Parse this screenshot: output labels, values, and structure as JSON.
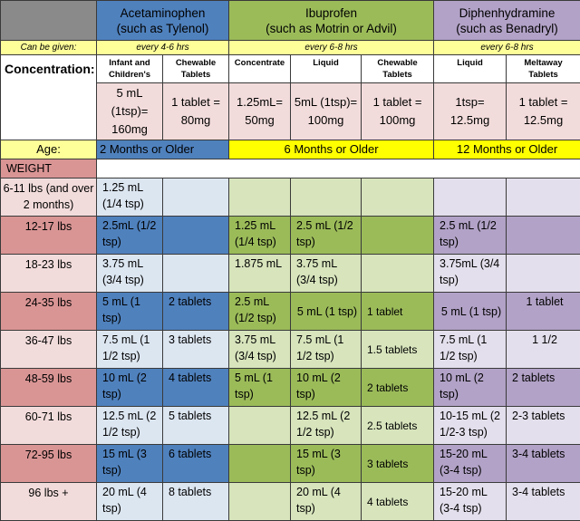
{
  "headers": {
    "acetaminophen": {
      "name": "Acetaminophen",
      "brand": "(such as Tylenol)"
    },
    "ibuprofen": {
      "name": "Ibuprofen",
      "brand": "(such as Motrin or Advil)"
    },
    "diphenhydramine": {
      "name": "Diphenhydramine",
      "brand": "(such as Benadryl)"
    }
  },
  "can_be_given": {
    "label": "Can be given:",
    "acetaminophen": "every 4-6 hrs",
    "ibuprofen": "every 6-8 hrs",
    "diphenhydramine": "every 6-8 hrs"
  },
  "concentration": {
    "label": "Concentration:",
    "subheaders": [
      "Infant and Children's",
      "Chewable Tablets",
      "Concentrate",
      "Liquid",
      "Chewable Tablets",
      "Liquid",
      "Meltaway Tablets"
    ],
    "values": [
      "5 mL (1tsp)= 160mg",
      "1 tablet = 80mg",
      "1.25mL= 50mg",
      "5mL (1tsp)= 100mg",
      "1 tablet = 100mg",
      "1tsp= 12.5mg",
      "1 tablet = 12.5mg"
    ]
  },
  "age": {
    "label": "Age:",
    "acetaminophen": "2 Months or Older",
    "ibuprofen": "6 Months or Older",
    "diphenhydramine": "12  Months or Older"
  },
  "weight_header": "WEIGHT",
  "rows": [
    {
      "weight": "6-11 lbs (and over 2 months)",
      "cells": [
        "1.25 mL (1/4 tsp)",
        "",
        "",
        "",
        "",
        "",
        ""
      ]
    },
    {
      "weight": "12-17 lbs",
      "cells": [
        "2.5mL (1/2 tsp)",
        "",
        "1.25 mL (1/4 tsp)",
        "2.5 mL (1/2 tsp)",
        "",
        "2.5 mL (1/2 tsp)",
        ""
      ]
    },
    {
      "weight": "18-23 lbs",
      "cells": [
        "3.75 mL (3/4 tsp)",
        "",
        "1.875 mL",
        "3.75 mL (3/4 tsp)",
        "",
        "3.75mL (3/4 tsp)",
        ""
      ]
    },
    {
      "weight": "24-35 lbs",
      "cells": [
        "5 mL (1 tsp)",
        "2 tablets",
        "2.5 mL (1/2 tsp)",
        "5 mL (1 tsp)",
        "1 tablet",
        "5 mL (1 tsp)",
        "1 tablet"
      ]
    },
    {
      "weight": "36-47 lbs",
      "cells": [
        "7.5 mL (1 1/2 tsp)",
        "3 tablets",
        "3.75 mL (3/4 tsp)",
        "7.5 mL (1 1/2 tsp)",
        "1.5 tablets",
        "7.5 mL (1 1/2 tsp)",
        "1 1/2"
      ]
    },
    {
      "weight": "48-59 lbs",
      "cells": [
        "10 mL (2 tsp)",
        "4 tablets",
        "5 mL (1 tsp)",
        "10 mL (2 tsp)",
        "2  tablets",
        "10 mL (2 tsp)",
        "2 tablets"
      ]
    },
    {
      "weight": "60-71 lbs",
      "cells": [
        "12.5 mL (2 1/2 tsp)",
        "5 tablets",
        "",
        "12.5 mL (2 1/2 tsp)",
        "2.5 tablets",
        "10-15 mL (2 1/2-3 tsp)",
        "2-3 tablets"
      ]
    },
    {
      "weight": "72-95 lbs",
      "cells": [
        "15 mL (3 tsp)",
        "6 tablets",
        "",
        "15 mL (3 tsp)",
        "3  tablets",
        "15-20 mL (3-4 tsp)",
        "3-4 tablets"
      ]
    },
    {
      "weight": "96 lbs +",
      "cells": [
        "20 mL (4 tsp)",
        "8 tablets",
        "",
        "20 mL (4 tsp)",
        "4 tablets",
        "15-20 mL (3-4 tsp)",
        "3-4 tablets"
      ]
    }
  ],
  "colors": {
    "acetaminophen": "#4f81bd",
    "ibuprofen": "#9bbb59",
    "diphenhydramine": "#b2a2c7",
    "weight_dark": "#d99594",
    "weight_light": "#f2dcdb",
    "age_highlight": "#ffff00"
  }
}
